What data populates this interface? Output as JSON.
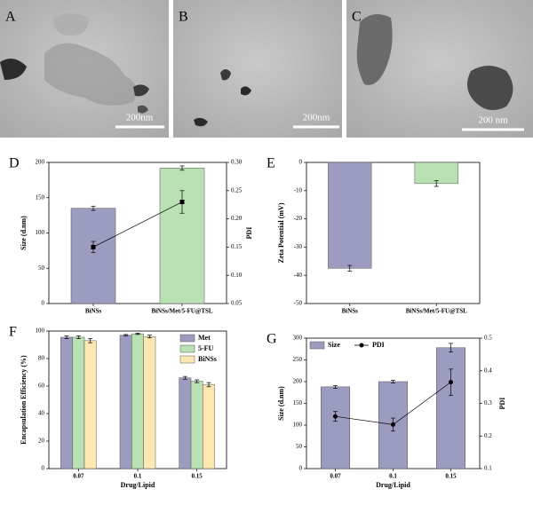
{
  "images": [
    {
      "letter": "A",
      "scale_label": "200nm"
    },
    {
      "letter": "B",
      "scale_label": "200nm"
    },
    {
      "letter": "C",
      "scale_label": "200 nm"
    }
  ],
  "chart_data": [
    {
      "type": "bar",
      "panel": "D",
      "ylabel": "Size (d.nm)",
      "y2label": "PDI",
      "categories": [
        "BiNSs",
        "BiNSs/Met/5-FU@TSL"
      ],
      "ylim": [
        0,
        200
      ],
      "yticks": [
        0,
        50,
        100,
        150,
        200
      ],
      "y2lim": [
        0.05,
        0.3
      ],
      "y2ticks": [
        0.05,
        {
          "value": 0.1,
          "label": "0.10"
        },
        0.15,
        {
          "value": 0.2,
          "label": "0.20"
        },
        0.25,
        {
          "value": 0.3,
          "label": "0.30"
        }
      ],
      "series": [
        {
          "colors": [
            "#9c9cc0",
            "#b9e1b3"
          ],
          "values": [
            135,
            192
          ],
          "errors": [
            3,
            3
          ]
        },
        {
          "type": "line",
          "axis": "y2",
          "marker": "square",
          "color": "#000000",
          "values": [
            0.15,
            0.23
          ],
          "errors": [
            0.01,
            0.02
          ]
        }
      ]
    },
    {
      "type": "bar",
      "panel": "E",
      "ylabel": "Zeta Potential (mV)",
      "categories": [
        "BiNSs",
        "BiNSs/Met/5-FU@TSL"
      ],
      "ylim": [
        -50,
        0
      ],
      "yticks": [
        -50,
        -40,
        -30,
        -20,
        -10,
        0
      ],
      "series": [
        {
          "colors": [
            "#9c9cc0",
            "#b9e1b3"
          ],
          "values": [
            -37.5,
            -7.5
          ],
          "errors": [
            1,
            1
          ]
        }
      ]
    },
    {
      "type": "bar",
      "panel": "F",
      "ylabel": "Encapsulation Efficiency (%)",
      "xlabel": "Drug/Lipid",
      "categories": [
        "0.07",
        "0.1",
        "0.15"
      ],
      "ylim": [
        0,
        100
      ],
      "yticks": [
        0,
        20,
        40,
        60,
        80,
        100
      ],
      "legend": "upper right",
      "series": [
        {
          "name": "Met",
          "color": "#9c9cc0",
          "values": [
            95.5,
            97,
            66
          ],
          "errors": [
            1,
            0.5,
            1
          ]
        },
        {
          "name": "5-FU",
          "color": "#b9e1b3",
          "values": [
            95.5,
            98,
            63.5
          ],
          "errors": [
            1,
            0.5,
            1
          ]
        },
        {
          "name": "BiNSs",
          "color": "#fde8b2",
          "values": [
            93,
            96,
            61
          ],
          "errors": [
            1.5,
            1,
            1.5
          ]
        }
      ]
    },
    {
      "type": "bar",
      "panel": "G",
      "ylabel": "Size (d.nm)",
      "y2label": "PDI",
      "xlabel": "Drug/Lipid",
      "categories": [
        "0.07",
        "0.1",
        "0.15"
      ],
      "ylim": [
        0,
        300
      ],
      "yticks": [
        0,
        50,
        100,
        150,
        200,
        250,
        300
      ],
      "y2lim": [
        0.1,
        0.5
      ],
      "y2ticks": [
        0.1,
        0.2,
        0.3,
        0.4,
        0.5
      ],
      "legend": "upper left",
      "series": [
        {
          "name": "Size",
          "color": "#9c9cc0",
          "values": [
            188,
            200,
            278
          ],
          "errors": [
            3,
            3,
            10
          ]
        },
        {
          "name": "PDI",
          "type": "line",
          "axis": "y2",
          "marker": "circle",
          "color": "#000000",
          "values": [
            0.26,
            0.235,
            0.365
          ],
          "errors": [
            0.015,
            0.02,
            0.04
          ]
        }
      ]
    }
  ]
}
